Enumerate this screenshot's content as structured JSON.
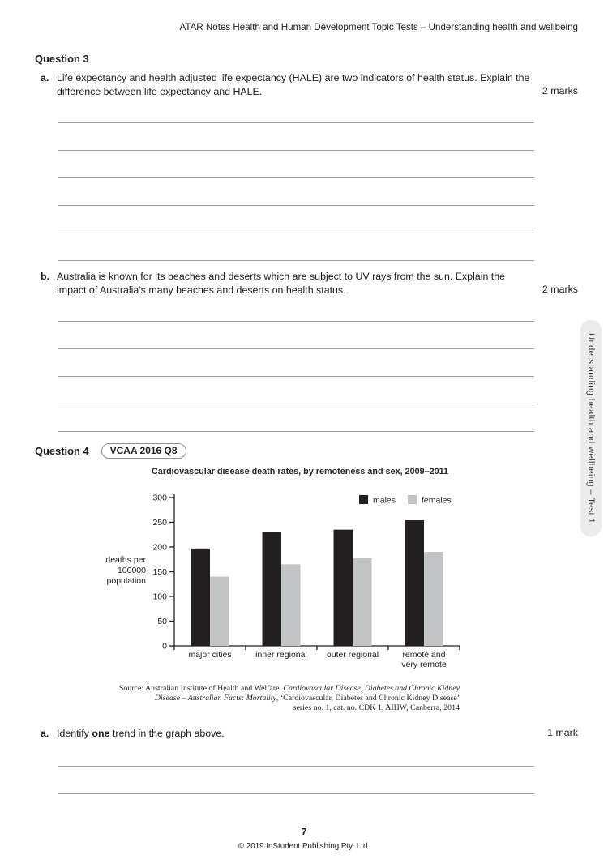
{
  "page": {
    "header": "ATAR Notes Health and Human Development Topic Tests – Understanding health and wellbeing",
    "page_number": "7",
    "copyright": "© 2019 InStudent Publishing Pty. Ltd.",
    "side_tab": "Understanding health and wellbeing – Test 1"
  },
  "question3": {
    "heading": "Question 3",
    "a": {
      "marker": "a.",
      "text": "Life expectancy and health adjusted life expectancy (HALE) are two indicators of health status. Explain the difference between life expectancy and HALE.",
      "marks": "2 marks",
      "answer_lines": 6
    },
    "b": {
      "marker": "b.",
      "text": "Australia is known for its beaches and deserts which are subject to UV rays from the sun. Explain the impact of Australia’s many beaches and deserts on health status.",
      "marks": "2 marks",
      "answer_lines": 5
    }
  },
  "question4": {
    "heading": "Question 4",
    "badge": "VCAA 2016 Q8",
    "source_segments": [
      [
        {
          "t": "Source: Australian Institute of Health and Welfare, ",
          "i": false
        },
        {
          "t": "Cardiovascular Disease, Diabetes and Chronic Kidney",
          "i": true
        }
      ],
      [
        {
          "t": "Disease – Australian Facts: Mortality",
          "i": true
        },
        {
          "t": ", ‘Cardiovascular, Diabetes and Chronic Kidney Disease’",
          "i": false
        }
      ],
      [
        {
          "t": "series no. 1, cat. no. CDK 1, AIHW, Canberra, 2014",
          "i": false
        }
      ]
    ],
    "a": {
      "marker": "a.",
      "text_segments": [
        {
          "t": "Identify ",
          "b": false
        },
        {
          "t": "one",
          "b": true
        },
        {
          "t": " trend in the graph above.",
          "b": false
        }
      ],
      "marks": "1 mark",
      "answer_lines": 2
    }
  },
  "chart_data": {
    "type": "bar",
    "title": "Cardiovascular disease death rates, by remoteness and sex, 2009–2011",
    "categories": [
      "major cities",
      "inner regional",
      "outer regional",
      "remote and\nvery remote"
    ],
    "series": [
      {
        "name": "males",
        "color": "#231f20",
        "values": [
          197,
          231,
          235,
          254
        ]
      },
      {
        "name": "females",
        "color": "#c1c3c5",
        "values": [
          140,
          165,
          177,
          190
        ]
      }
    ],
    "ylabel_lines": [
      "deaths per",
      "100000",
      "population"
    ],
    "ylabel": "deaths per 100000 population",
    "ylim": [
      0,
      300
    ],
    "ytick_step": 50,
    "legend_position": "top-right",
    "grid": false,
    "axis_color": "#231f20"
  }
}
